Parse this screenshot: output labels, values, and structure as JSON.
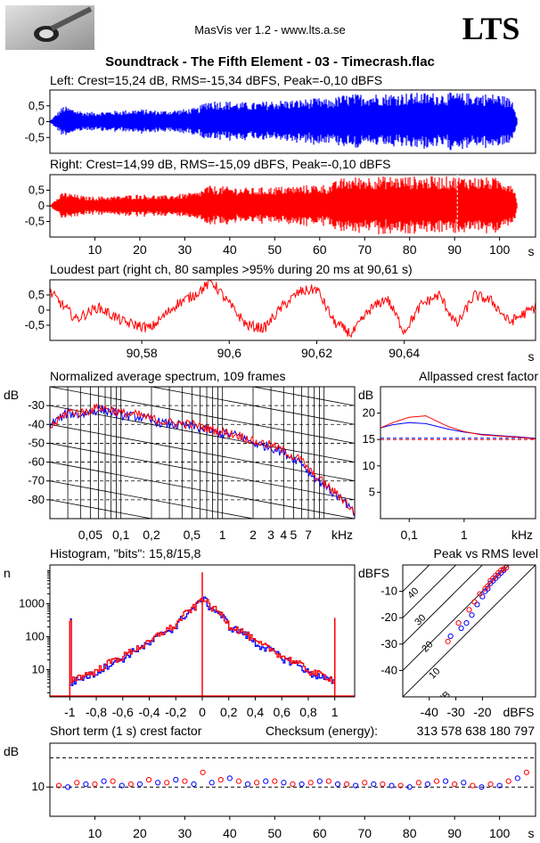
{
  "header": {
    "version_text": "MasVis ver 1.2 - www.lts.a.se",
    "logo_text": "LTS",
    "file_title": "Soundtrack - The Fifth Element - 03 - Timecrash.flac"
  },
  "colors": {
    "left": "#0000ff",
    "right": "#ff0000",
    "grid": "#000000",
    "background": "#ffffff"
  },
  "chart_data": [
    {
      "id": "left",
      "type": "area",
      "title": "Left: Crest=15,24 dB, RMS=-15,34 dBFS, Peak=-0,10 dBFS",
      "yticks": [
        "0,5",
        "0",
        "-0,5"
      ],
      "ytick_values": [
        0.5,
        0,
        -0.5
      ],
      "ylim": [
        -1,
        1
      ],
      "xlim": [
        0,
        108
      ],
      "envelope": {
        "t": [
          0,
          3,
          8,
          15,
          20,
          25,
          30,
          33,
          35,
          40,
          45,
          50,
          55,
          60,
          62,
          65,
          70,
          75,
          80,
          85,
          90,
          95,
          100,
          103,
          104
        ],
        "amp": [
          0.02,
          0.5,
          0.3,
          0.35,
          0.4,
          0.35,
          0.4,
          0.45,
          0.7,
          0.65,
          0.6,
          0.68,
          0.7,
          0.75,
          0.7,
          0.85,
          0.9,
          0.9,
          0.92,
          0.92,
          0.92,
          0.9,
          0.88,
          0.7,
          0.05
        ]
      }
    },
    {
      "id": "right",
      "type": "area",
      "title": "Right: Crest=14,99 dB, RMS=-15,09 dBFS, Peak=-0,10 dBFS",
      "yticks": [
        "0,5",
        "0",
        "-0,5"
      ],
      "ytick_values": [
        0.5,
        0,
        -0.5
      ],
      "ylim": [
        -1,
        1
      ],
      "xlim": [
        0,
        108
      ],
      "x_ticks": [
        10,
        20,
        30,
        40,
        50,
        60,
        70,
        80,
        90,
        100
      ],
      "x_tick_labels": [
        "10",
        "20",
        "30",
        "40",
        "50",
        "60",
        "70",
        "80",
        "90",
        "100"
      ],
      "x_unit": "s",
      "loudest_marker_t": 90.61,
      "envelope": {
        "t": [
          0,
          3,
          8,
          15,
          20,
          25,
          30,
          33,
          35,
          40,
          45,
          50,
          55,
          60,
          62,
          65,
          70,
          75,
          80,
          85,
          90,
          95,
          100,
          103,
          104
        ],
        "amp": [
          0.02,
          0.45,
          0.3,
          0.32,
          0.38,
          0.33,
          0.4,
          0.45,
          0.65,
          0.62,
          0.58,
          0.62,
          0.65,
          0.7,
          0.68,
          0.9,
          0.95,
          0.95,
          0.95,
          0.95,
          0.95,
          0.93,
          0.9,
          0.75,
          0.05
        ]
      }
    },
    {
      "id": "loudest",
      "type": "line",
      "title": "Loudest part (right ch, 80 samples >95% during 20 ms at 90,61 s)",
      "yticks": [
        "0,5",
        "0",
        "-0,5"
      ],
      "ytick_values": [
        0.5,
        0,
        -0.5
      ],
      "ylim": [
        -1,
        1
      ],
      "xlim": [
        90.559,
        90.67
      ],
      "x_ticks": [
        90.58,
        90.6,
        90.62,
        90.64
      ],
      "x_tick_labels": [
        "90,58",
        "90,6",
        "90,62",
        "90,64"
      ],
      "x_unit": "s",
      "waveform": {
        "t": [
          90.559,
          90.565,
          90.57,
          90.576,
          90.582,
          90.588,
          90.592,
          90.596,
          90.6,
          90.604,
          90.608,
          90.612,
          90.616,
          90.62,
          90.624,
          90.628,
          90.632,
          90.636,
          90.64,
          90.644,
          90.648,
          90.652,
          90.656,
          90.66,
          90.664,
          90.67
        ],
        "v": [
          0.6,
          -0.3,
          0.1,
          -0.4,
          -0.6,
          0.2,
          0.5,
          0.95,
          0.2,
          -0.5,
          -0.6,
          0.1,
          0.6,
          0.7,
          -0.4,
          -0.8,
          0.0,
          0.4,
          -0.7,
          0.2,
          0.5,
          -0.5,
          0.5,
          0.3,
          -0.4,
          0.1
        ]
      }
    },
    {
      "id": "spectrum",
      "type": "line",
      "title": "Normalized average spectrum, 109 frames",
      "ylabel": "dB",
      "yticks": [
        "-30",
        "-40",
        "-50",
        "-60",
        "-70",
        "-80"
      ],
      "ytick_values": [
        -30,
        -40,
        -50,
        -60,
        -70,
        -80
      ],
      "ylim": [
        -90,
        -20
      ],
      "x_scale": "log",
      "xlim": [
        0.02,
        20
      ],
      "x_tick_values": [
        0.05,
        0.1,
        0.2,
        0.5,
        1,
        2,
        3,
        4,
        5,
        7
      ],
      "x_tick_labels": [
        "0,05",
        "0,1",
        "0,2",
        "0,5",
        "1",
        "2",
        "3",
        "4",
        "5",
        "7"
      ],
      "x_unit": "kHz",
      "series": [
        {
          "color": "#0000ff",
          "x": [
            0.02,
            0.03,
            0.04,
            0.06,
            0.08,
            0.1,
            0.15,
            0.2,
            0.3,
            0.5,
            0.7,
            1,
            1.5,
            2,
            3,
            4,
            5,
            6,
            7,
            8,
            10,
            12,
            15,
            20
          ],
          "y": [
            -40,
            -34,
            -35,
            -32,
            -33,
            -35,
            -36,
            -38,
            -40,
            -41,
            -43,
            -45,
            -46,
            -50,
            -52,
            -55,
            -58,
            -60,
            -65,
            -68,
            -72,
            -76,
            -80,
            -88
          ]
        },
        {
          "color": "#ff0000",
          "x": [
            0.02,
            0.03,
            0.04,
            0.06,
            0.08,
            0.1,
            0.15,
            0.2,
            0.3,
            0.5,
            0.7,
            1,
            1.5,
            2,
            3,
            4,
            5,
            6,
            7,
            8,
            10,
            12,
            15,
            20
          ],
          "y": [
            -42,
            -33,
            -34,
            -31,
            -32,
            -34,
            -35,
            -37,
            -39,
            -40,
            -42,
            -44,
            -46,
            -49,
            -51,
            -54,
            -57,
            -59,
            -64,
            -67,
            -71,
            -75,
            -79,
            -87
          ]
        }
      ]
    },
    {
      "id": "allpass",
      "type": "line",
      "title": "Allpassed crest factor",
      "ylabel": "dB",
      "yticks": [
        "20",
        "15",
        "10",
        "5"
      ],
      "ytick_values": [
        20,
        15,
        10,
        5
      ],
      "ylim": [
        0,
        25
      ],
      "x_scale": "log",
      "xlim": [
        0.03,
        20
      ],
      "x_tick_values": [
        0.1,
        1
      ],
      "x_tick_labels": [
        "0,1",
        "1"
      ],
      "x_unit": "kHz",
      "reference_lines": [
        15.24,
        14.99
      ],
      "series": [
        {
          "color": "#0000ff",
          "x": [
            0.03,
            0.05,
            0.1,
            0.2,
            0.5,
            1,
            2,
            5,
            10,
            20
          ],
          "y": [
            17.2,
            17.8,
            18.2,
            18.0,
            17.0,
            16.4,
            16.0,
            15.7,
            15.5,
            15.2
          ]
        },
        {
          "color": "#ff0000",
          "x": [
            0.03,
            0.05,
            0.1,
            0.2,
            0.5,
            1,
            2,
            5,
            10,
            20
          ],
          "y": [
            17.2,
            18.2,
            19.2,
            19.5,
            17.5,
            16.5,
            15.9,
            15.6,
            15.4,
            15.1
          ]
        }
      ]
    },
    {
      "id": "histogram",
      "type": "line",
      "title": "Histogram, \"bits\": 15,8/15,8",
      "ylabel": "n",
      "y_scale": "log",
      "yticks": [
        "1000",
        "100",
        "10"
      ],
      "ytick_values": [
        1000,
        100,
        10
      ],
      "ylim": [
        1.5,
        15000
      ],
      "xlim": [
        -1.15,
        1.15
      ],
      "x_tick_values": [
        -1,
        -0.8,
        -0.6,
        -0.4,
        -0.2,
        0,
        0.2,
        0.4,
        0.6,
        0.8,
        1
      ],
      "x_tick_labels": [
        "-1",
        "-0,8",
        "-0,6",
        "-0,4",
        "-0,2",
        "0",
        "0,2",
        "0,4",
        "0,6",
        "0,8",
        "1"
      ],
      "series": [
        {
          "color": "#0000ff",
          "x": [
            -1,
            -0.99,
            -0.8,
            -0.6,
            -0.4,
            -0.2,
            -0.05,
            0,
            0.05,
            0.2,
            0.4,
            0.6,
            0.8,
            0.99,
            1
          ],
          "y": [
            300,
            4,
            8,
            22,
            60,
            200,
            800,
            1500,
            800,
            200,
            60,
            22,
            8,
            4,
            300
          ]
        },
        {
          "color": "#ff0000",
          "x": [
            -1,
            -0.99,
            -0.8,
            -0.6,
            -0.4,
            -0.2,
            -0.05,
            0,
            0.05,
            0.2,
            0.4,
            0.6,
            0.8,
            0.99,
            1
          ],
          "y": [
            350,
            5,
            9,
            25,
            65,
            220,
            850,
            1600,
            850,
            220,
            65,
            25,
            9,
            5,
            350
          ]
        }
      ]
    },
    {
      "id": "peak_vs_rms",
      "type": "scatter",
      "title": "Peak vs RMS level",
      "ylabel": "dBFS",
      "xlabel": "dBFS",
      "yticks": [
        "-10",
        "-20",
        "-30",
        "-40"
      ],
      "ytick_values": [
        -10,
        -20,
        -30,
        -40
      ],
      "ylim": [
        -50,
        0
      ],
      "xlim": [
        -50,
        0
      ],
      "x_tick_values": [
        -40,
        -30,
        -20
      ],
      "x_tick_labels": [
        "-40",
        "-30",
        "-20"
      ],
      "diagonal_labels": [
        "40",
        "30",
        "20",
        "10",
        "0 dB"
      ],
      "diagonal_offsets": [
        40,
        30,
        20,
        10,
        0
      ],
      "series": [
        {
          "color": "#0000ff",
          "x": [
            -32,
            -28,
            -26,
            -24,
            -22,
            -20,
            -19,
            -18,
            -17,
            -16,
            -15,
            -14,
            -13,
            -12,
            -11
          ],
          "y": [
            -27,
            -24,
            -22,
            -19,
            -15,
            -12,
            -10,
            -9,
            -7,
            -6,
            -5,
            -4,
            -3,
            -2,
            -1
          ]
        },
        {
          "color": "#ff0000",
          "x": [
            -33,
            -29,
            -25,
            -23,
            -21,
            -19,
            -18,
            -17,
            -16,
            -15,
            -14,
            -13,
            -12,
            -11
          ],
          "y": [
            -29,
            -22,
            -17,
            -14,
            -11,
            -9,
            -8,
            -6,
            -5,
            -4,
            -3,
            -2,
            -1.5,
            -1
          ]
        }
      ]
    },
    {
      "id": "short_crest",
      "type": "scatter",
      "title": "Short term (1 s) crest factor",
      "checksum_label": "Checksum (energy):",
      "checksum_value": "313 578 638 180 797",
      "ylabel": "dB",
      "yticks": [
        "10"
      ],
      "ytick_values": [
        10
      ],
      "ylim": [
        0,
        25
      ],
      "xlim": [
        0,
        108
      ],
      "dashed_lines": [
        10,
        20
      ],
      "x_ticks": [
        10,
        20,
        30,
        40,
        50,
        60,
        70,
        80,
        90,
        100
      ],
      "x_tick_labels": [
        "10",
        "20",
        "30",
        "40",
        "50",
        "60",
        "70",
        "80",
        "90",
        "100"
      ],
      "x_unit": "s",
      "series": [
        {
          "color": "#ff0000",
          "x": [
            2,
            6,
            10,
            14,
            18,
            22,
            26,
            30,
            34,
            38,
            42,
            46,
            50,
            54,
            58,
            62,
            66,
            70,
            74,
            78,
            82,
            86,
            90,
            94,
            98,
            102,
            106
          ],
          "y": [
            10.5,
            11.5,
            11,
            12,
            11,
            12.5,
            11.5,
            12,
            15,
            12.5,
            12,
            11.5,
            12,
            11,
            11.5,
            12,
            11,
            11.5,
            11,
            10.5,
            11.5,
            12,
            11,
            10.5,
            11,
            12,
            15
          ]
        },
        {
          "color": "#0000ff",
          "x": [
            4,
            8,
            12,
            16,
            20,
            24,
            28,
            32,
            36,
            40,
            44,
            48,
            52,
            56,
            60,
            64,
            68,
            72,
            76,
            80,
            84,
            88,
            92,
            96,
            100,
            104
          ],
          "y": [
            10,
            11,
            12,
            10.5,
            11,
            11.5,
            12.5,
            11,
            11.5,
            13,
            11,
            12,
            11.5,
            11,
            12,
            11,
            10.5,
            11,
            10.5,
            10,
            11,
            12,
            11.5,
            10,
            10.5,
            13
          ]
        }
      ]
    }
  ]
}
